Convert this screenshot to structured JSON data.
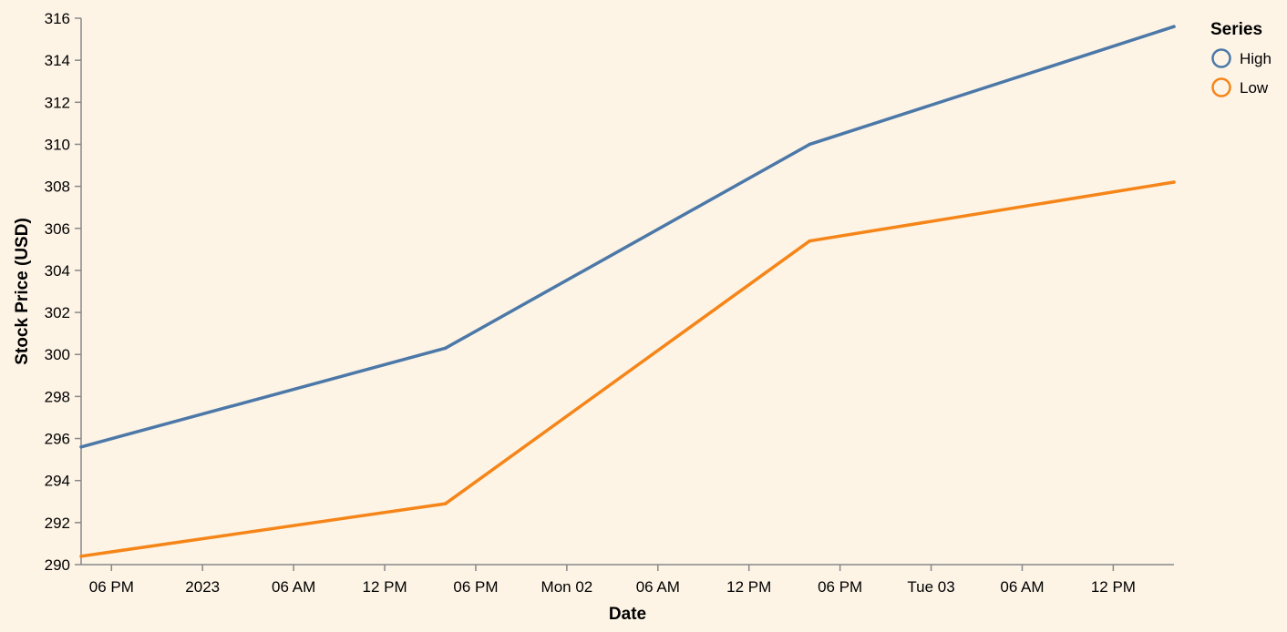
{
  "chart_data": {
    "type": "line",
    "x_field": "Date",
    "xlabel": "Date",
    "ylabel": "Stock Price (USD)",
    "ylim": [
      290,
      316
    ],
    "y_ticks": [
      290,
      292,
      294,
      296,
      298,
      300,
      302,
      304,
      306,
      308,
      310,
      312,
      314,
      316
    ],
    "x_tick_labels": [
      "06 PM",
      "2023",
      "06 AM",
      "12 PM",
      "06 PM",
      "Mon 02",
      "06 AM",
      "12 PM",
      "06 PM",
      "Tue 03",
      "06 AM",
      "12 PM"
    ],
    "x_tick_dates": [
      "2022-12-31 18:00",
      "2023-01-01 00:00",
      "2023-01-01 06:00",
      "2023-01-01 12:00",
      "2023-01-01 18:00",
      "2023-01-02 00:00",
      "2023-01-02 06:00",
      "2023-01-02 12:00",
      "2023-01-02 18:00",
      "2023-01-03 00:00",
      "2023-01-03 06:00",
      "2023-01-03 12:00"
    ],
    "xlim": [
      "2022-12-31 16:00",
      "2023-01-03 16:00"
    ],
    "x": [
      "2022-12-31 16:00",
      "2023-01-01 16:00",
      "2023-01-02 16:00",
      "2023-01-03 16:00"
    ],
    "series": [
      {
        "name": "High",
        "color": "#4c78a8",
        "values": [
          295.6,
          300.3,
          310.0,
          315.6
        ]
      },
      {
        "name": "Low",
        "color": "#f58518",
        "values": [
          290.4,
          292.9,
          305.4,
          308.2
        ]
      }
    ],
    "legend": {
      "title": "Series",
      "position": "top-right"
    },
    "grid": false
  }
}
